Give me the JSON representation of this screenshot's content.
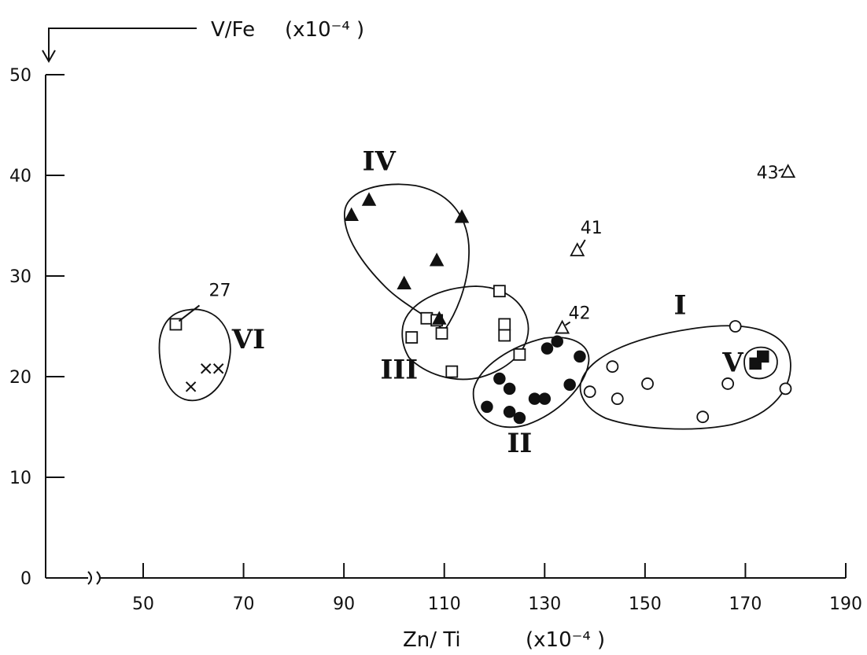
{
  "chart_data": {
    "type": "scatter",
    "title": "",
    "xlabel": "Zn/ Ti",
    "xlabel_unit": "(x10⁻⁴ )",
    "ylabel": "V/Fe",
    "ylabel_unit": "(x10⁻⁴ )",
    "xlim": [
      40,
      190
    ],
    "ylim": [
      0,
      50
    ],
    "xticks": [
      50,
      70,
      90,
      110,
      130,
      150,
      170,
      190
    ],
    "xtick_labels": [
      "50",
      "70",
      "90",
      "110",
      "130",
      "150",
      "170",
      "190"
    ],
    "yticks": [
      0,
      10,
      20,
      30,
      40,
      50
    ],
    "ytick_labels": [
      "0",
      "10",
      "20",
      "30",
      "40",
      "50"
    ],
    "x_axis_break": true,
    "grid": false,
    "legend": "none",
    "series": [
      {
        "marker": "open-circle",
        "points": [
          [
            139,
            18.5
          ],
          [
            143.5,
            21
          ],
          [
            144.5,
            17.8
          ],
          [
            150.5,
            19.3
          ],
          [
            161.5,
            16
          ],
          [
            166.5,
            19.3
          ],
          [
            168,
            25
          ],
          [
            178,
            18.8
          ]
        ]
      },
      {
        "marker": "filled-circle",
        "points": [
          [
            118.5,
            17
          ],
          [
            121,
            19.8
          ],
          [
            123,
            18.8
          ],
          [
            123,
            16.5
          ],
          [
            125,
            15.9
          ],
          [
            128,
            17.8
          ],
          [
            130,
            17.8
          ],
          [
            130.5,
            22.8
          ],
          [
            132.5,
            23.5
          ],
          [
            135,
            19.2
          ],
          [
            137,
            22
          ]
        ]
      },
      {
        "marker": "open-square",
        "points": [
          [
            56.5,
            25.2
          ],
          [
            103.5,
            23.9
          ],
          [
            106.5,
            25.8
          ],
          [
            108.5,
            25.6
          ],
          [
            109.5,
            24.3
          ],
          [
            111.5,
            20.5
          ],
          [
            121,
            28.5
          ],
          [
            122,
            25.2
          ],
          [
            122,
            24.1
          ],
          [
            125,
            22.2
          ]
        ]
      },
      {
        "marker": "filled-triangle",
        "points": [
          [
            91.5,
            36
          ],
          [
            95,
            37.5
          ],
          [
            102,
            29.2
          ],
          [
            108.5,
            31.5
          ],
          [
            109,
            25.7
          ],
          [
            113.5,
            35.8
          ]
        ]
      },
      {
        "marker": "filled-square",
        "points": [
          [
            172,
            21.3
          ],
          [
            173.5,
            22
          ]
        ]
      },
      {
        "marker": "cross",
        "points": [
          [
            59.5,
            19
          ],
          [
            62.5,
            20.8
          ],
          [
            65,
            20.8
          ]
        ]
      },
      {
        "marker": "open-triangle",
        "points": [
          [
            136.5,
            32.5
          ],
          [
            133.5,
            24.8
          ],
          [
            178.5,
            40.3
          ]
        ]
      }
    ],
    "groups": [
      {
        "label": "I",
        "label_at": [
          157,
          26.2
        ]
      },
      {
        "label": "II",
        "label_at": [
          125,
          12.5
        ]
      },
      {
        "label": "III",
        "label_at": [
          101,
          19.8
        ]
      },
      {
        "label": "IV",
        "label_at": [
          97,
          40.5
        ]
      },
      {
        "label": "V",
        "label_at": [
          167.5,
          20.5
        ]
      },
      {
        "label": "VI",
        "label_at": [
          71,
          22.8
        ]
      }
    ],
    "annotations": [
      {
        "text": "27",
        "point": [
          56.5,
          25.2
        ]
      },
      {
        "text": "41",
        "point": [
          136.5,
          32.5
        ]
      },
      {
        "text": "42",
        "point": [
          133.5,
          24.8
        ]
      },
      {
        "text": "43",
        "point": [
          178.5,
          40.3
        ]
      }
    ]
  }
}
